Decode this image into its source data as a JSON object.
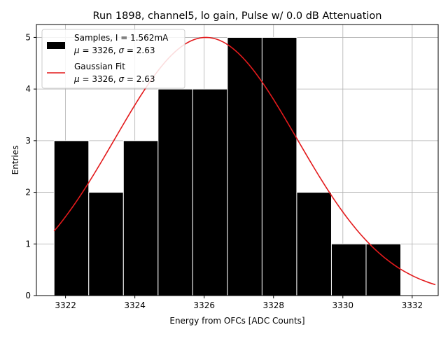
{
  "chart_data": {
    "type": "histogram",
    "title": "Run 1898, channel5, lo gain, Pulse w/ 0.0 dB Attenuation",
    "xlabel": "Energy from OFCs [ADC Counts]",
    "ylabel": "Entries",
    "xlim": [
      3321.16,
      3332.75
    ],
    "ylim": [
      0,
      5.25
    ],
    "xticks": [
      3322,
      3324,
      3326,
      3328,
      3330,
      3332
    ],
    "yticks": [
      0,
      1,
      2,
      3,
      4,
      5
    ],
    "grid": true,
    "legend_position": "upper-left",
    "bin_edges": [
      3321.67,
      3322.67,
      3323.67,
      3324.67,
      3325.67,
      3326.67,
      3327.67,
      3328.67,
      3329.67,
      3330.67,
      3331.67,
      3332.67
    ],
    "counts": [
      3,
      2,
      3,
      4,
      4,
      5,
      5,
      2,
      1,
      1,
      0
    ],
    "bars": [
      {
        "x0": 3321.67,
        "x1": 3322.67,
        "count": 3
      },
      {
        "x0": 3322.67,
        "x1": 3323.67,
        "count": 2
      },
      {
        "x0": 3323.67,
        "x1": 3324.67,
        "count": 3
      },
      {
        "x0": 3324.67,
        "x1": 3325.67,
        "count": 4
      },
      {
        "x0": 3325.67,
        "x1": 3326.67,
        "count": 4
      },
      {
        "x0": 3326.67,
        "x1": 3327.67,
        "count": 5
      },
      {
        "x0": 3327.67,
        "x1": 3328.67,
        "count": 5
      },
      {
        "x0": 3328.67,
        "x1": 3329.67,
        "count": 2
      },
      {
        "x0": 3329.67,
        "x1": 3330.67,
        "count": 1
      },
      {
        "x0": 3330.67,
        "x1": 3331.67,
        "count": 1
      }
    ],
    "series": [
      {
        "name": "Samples",
        "kind": "bars",
        "color": "#000000",
        "edgecolor": "#ffffff",
        "label_line1": "Samples, I = 1.562mA",
        "label_mu": "μ",
        "label_line2_rest": " = 3326, ",
        "label_sigma": "σ",
        "label_line2_end": " = 2.63"
      },
      {
        "name": "Gaussian Fit",
        "kind": "line",
        "color": "#e31a1c",
        "amplitude": 5.0,
        "mu": 3326.05,
        "sigma": 2.63,
        "label_line1": "Gaussian Fit",
        "label_mu": "μ",
        "label_line2_rest": " = 3326, ",
        "label_sigma": "σ",
        "label_line2_end": " = 2.63"
      }
    ]
  }
}
